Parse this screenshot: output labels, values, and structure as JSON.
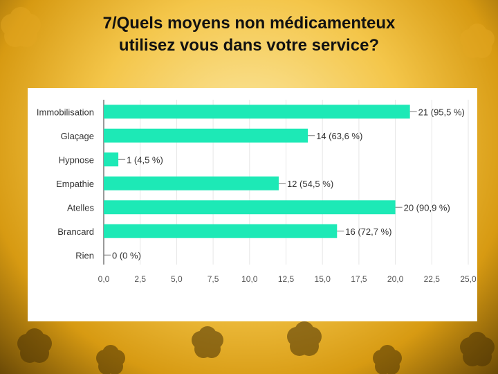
{
  "slide": {
    "title_line1": "7/Quels moyens non médicamenteux",
    "title_line2": "utilisez vous dans votre service?"
  },
  "colors": {
    "bar": "#1de9b6",
    "grid": "#e6e6e6"
  },
  "chart_data": {
    "type": "bar",
    "orientation": "horizontal",
    "categories": [
      "Immobilisation",
      "Glaçage",
      "Hypnose",
      "Empathie",
      "Atelles",
      "Brancard",
      "Rien"
    ],
    "values": [
      21,
      14,
      1,
      12,
      20,
      16,
      0
    ],
    "value_labels": [
      "21 (95,5 %)",
      "14 (63,6 %)",
      "1 (4,5 %)",
      "12 (54,5 %)",
      "20 (90,9 %)",
      "16 (72,7 %)",
      "0 (0 %)"
    ],
    "xlim": [
      0,
      25
    ],
    "xticks": [
      0,
      2.5,
      5,
      7.5,
      10,
      12.5,
      15,
      17.5,
      20,
      22.5,
      25
    ],
    "xtick_labels": [
      "0,0",
      "2,5",
      "5,0",
      "7,5",
      "10,0",
      "12,5",
      "15,0",
      "17,5",
      "20,0",
      "22,5",
      "25,0"
    ],
    "grid": true,
    "legend": "none"
  }
}
